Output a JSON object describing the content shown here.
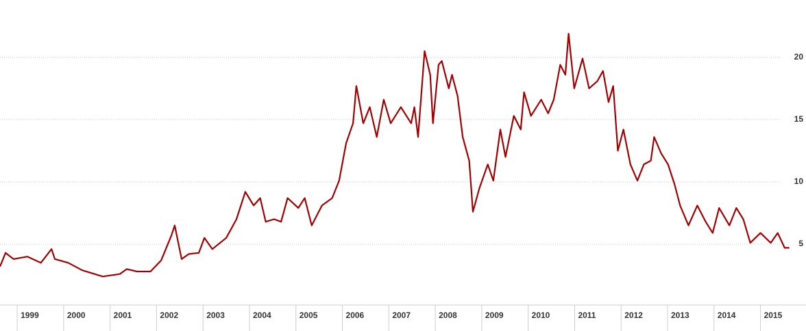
{
  "chart_data": {
    "type": "line",
    "x": [
      1998.63,
      1998.75,
      1998.92,
      1999.22,
      1999.51,
      1999.74,
      1999.81,
      2000.1,
      2000.4,
      2000.84,
      2001.21,
      2001.36,
      2001.58,
      2001.87,
      2002.1,
      2002.32,
      2002.39,
      2002.54,
      2002.69,
      2002.91,
      2003.03,
      2003.2,
      2003.5,
      2003.72,
      2003.91,
      2004.09,
      2004.23,
      2004.35,
      2004.53,
      2004.68,
      2004.82,
      2005.05,
      2005.19,
      2005.34,
      2005.56,
      2005.78,
      2005.93,
      2006.08,
      2006.23,
      2006.3,
      2006.45,
      2006.59,
      2006.74,
      2006.89,
      2007.04,
      2007.26,
      2007.48,
      2007.55,
      2007.63,
      2007.77,
      2007.89,
      2007.95,
      2008.07,
      2008.14,
      2008.29,
      2008.36,
      2008.48,
      2008.59,
      2008.73,
      2008.81,
      2008.95,
      2009.13,
      2009.25,
      2009.4,
      2009.51,
      2009.69,
      2009.84,
      2009.91,
      2010.06,
      2010.28,
      2010.43,
      2010.55,
      2010.69,
      2010.8,
      2010.87,
      2010.99,
      2011.17,
      2011.31,
      2011.49,
      2011.61,
      2011.73,
      2011.83,
      2011.93,
      2012.05,
      2012.2,
      2012.35,
      2012.49,
      2012.64,
      2012.71,
      2012.86,
      2013.01,
      2013.15,
      2013.27,
      2013.45,
      2013.64,
      2013.82,
      2013.97,
      2014.11,
      2014.33,
      2014.48,
      2014.63,
      2014.78,
      2015.0,
      2015.22,
      2015.37,
      2015.52,
      2015.62
    ],
    "series": [
      {
        "color": "#a00000",
        "values": [
          3.2,
          4.3,
          3.8,
          4.0,
          3.5,
          4.6,
          3.8,
          3.5,
          2.9,
          2.4,
          2.6,
          3.0,
          2.8,
          2.8,
          3.7,
          5.7,
          6.5,
          3.8,
          4.2,
          4.3,
          5.5,
          4.6,
          5.5,
          7.0,
          9.2,
          8.1,
          8.7,
          6.8,
          7.0,
          6.8,
          8.7,
          7.9,
          8.7,
          6.5,
          8.1,
          8.7,
          10.1,
          13.1,
          14.7,
          17.7,
          14.7,
          16.0,
          13.6,
          16.6,
          14.7,
          16.0,
          14.7,
          16.0,
          13.6,
          20.5,
          18.6,
          14.7,
          19.4,
          19.7,
          17.5,
          18.6,
          16.9,
          13.6,
          11.7,
          7.6,
          9.5,
          11.4,
          10.1,
          14.2,
          12.0,
          15.3,
          14.2,
          17.2,
          15.3,
          16.6,
          15.5,
          16.6,
          19.4,
          18.6,
          21.9,
          17.5,
          19.9,
          17.5,
          18.1,
          18.9,
          16.4,
          17.7,
          12.5,
          14.2,
          11.4,
          10.1,
          11.4,
          11.7,
          13.6,
          12.3,
          11.4,
          9.8,
          8.1,
          6.5,
          8.1,
          6.8,
          5.9,
          7.9,
          6.5,
          7.9,
          7.0,
          5.1,
          5.9,
          5.1,
          5.9,
          4.7,
          4.7
        ]
      }
    ],
    "xlim": [
      1998.63,
      2015.98
    ],
    "xticks": [
      1999,
      2000,
      2001,
      2002,
      2003,
      2004,
      2005,
      2006,
      2007,
      2008,
      2009,
      2010,
      2011,
      2012,
      2013,
      2014,
      2015
    ],
    "ylim": [
      0,
      24.6
    ],
    "yticks": [
      5,
      10,
      15,
      20
    ],
    "grid": true
  }
}
